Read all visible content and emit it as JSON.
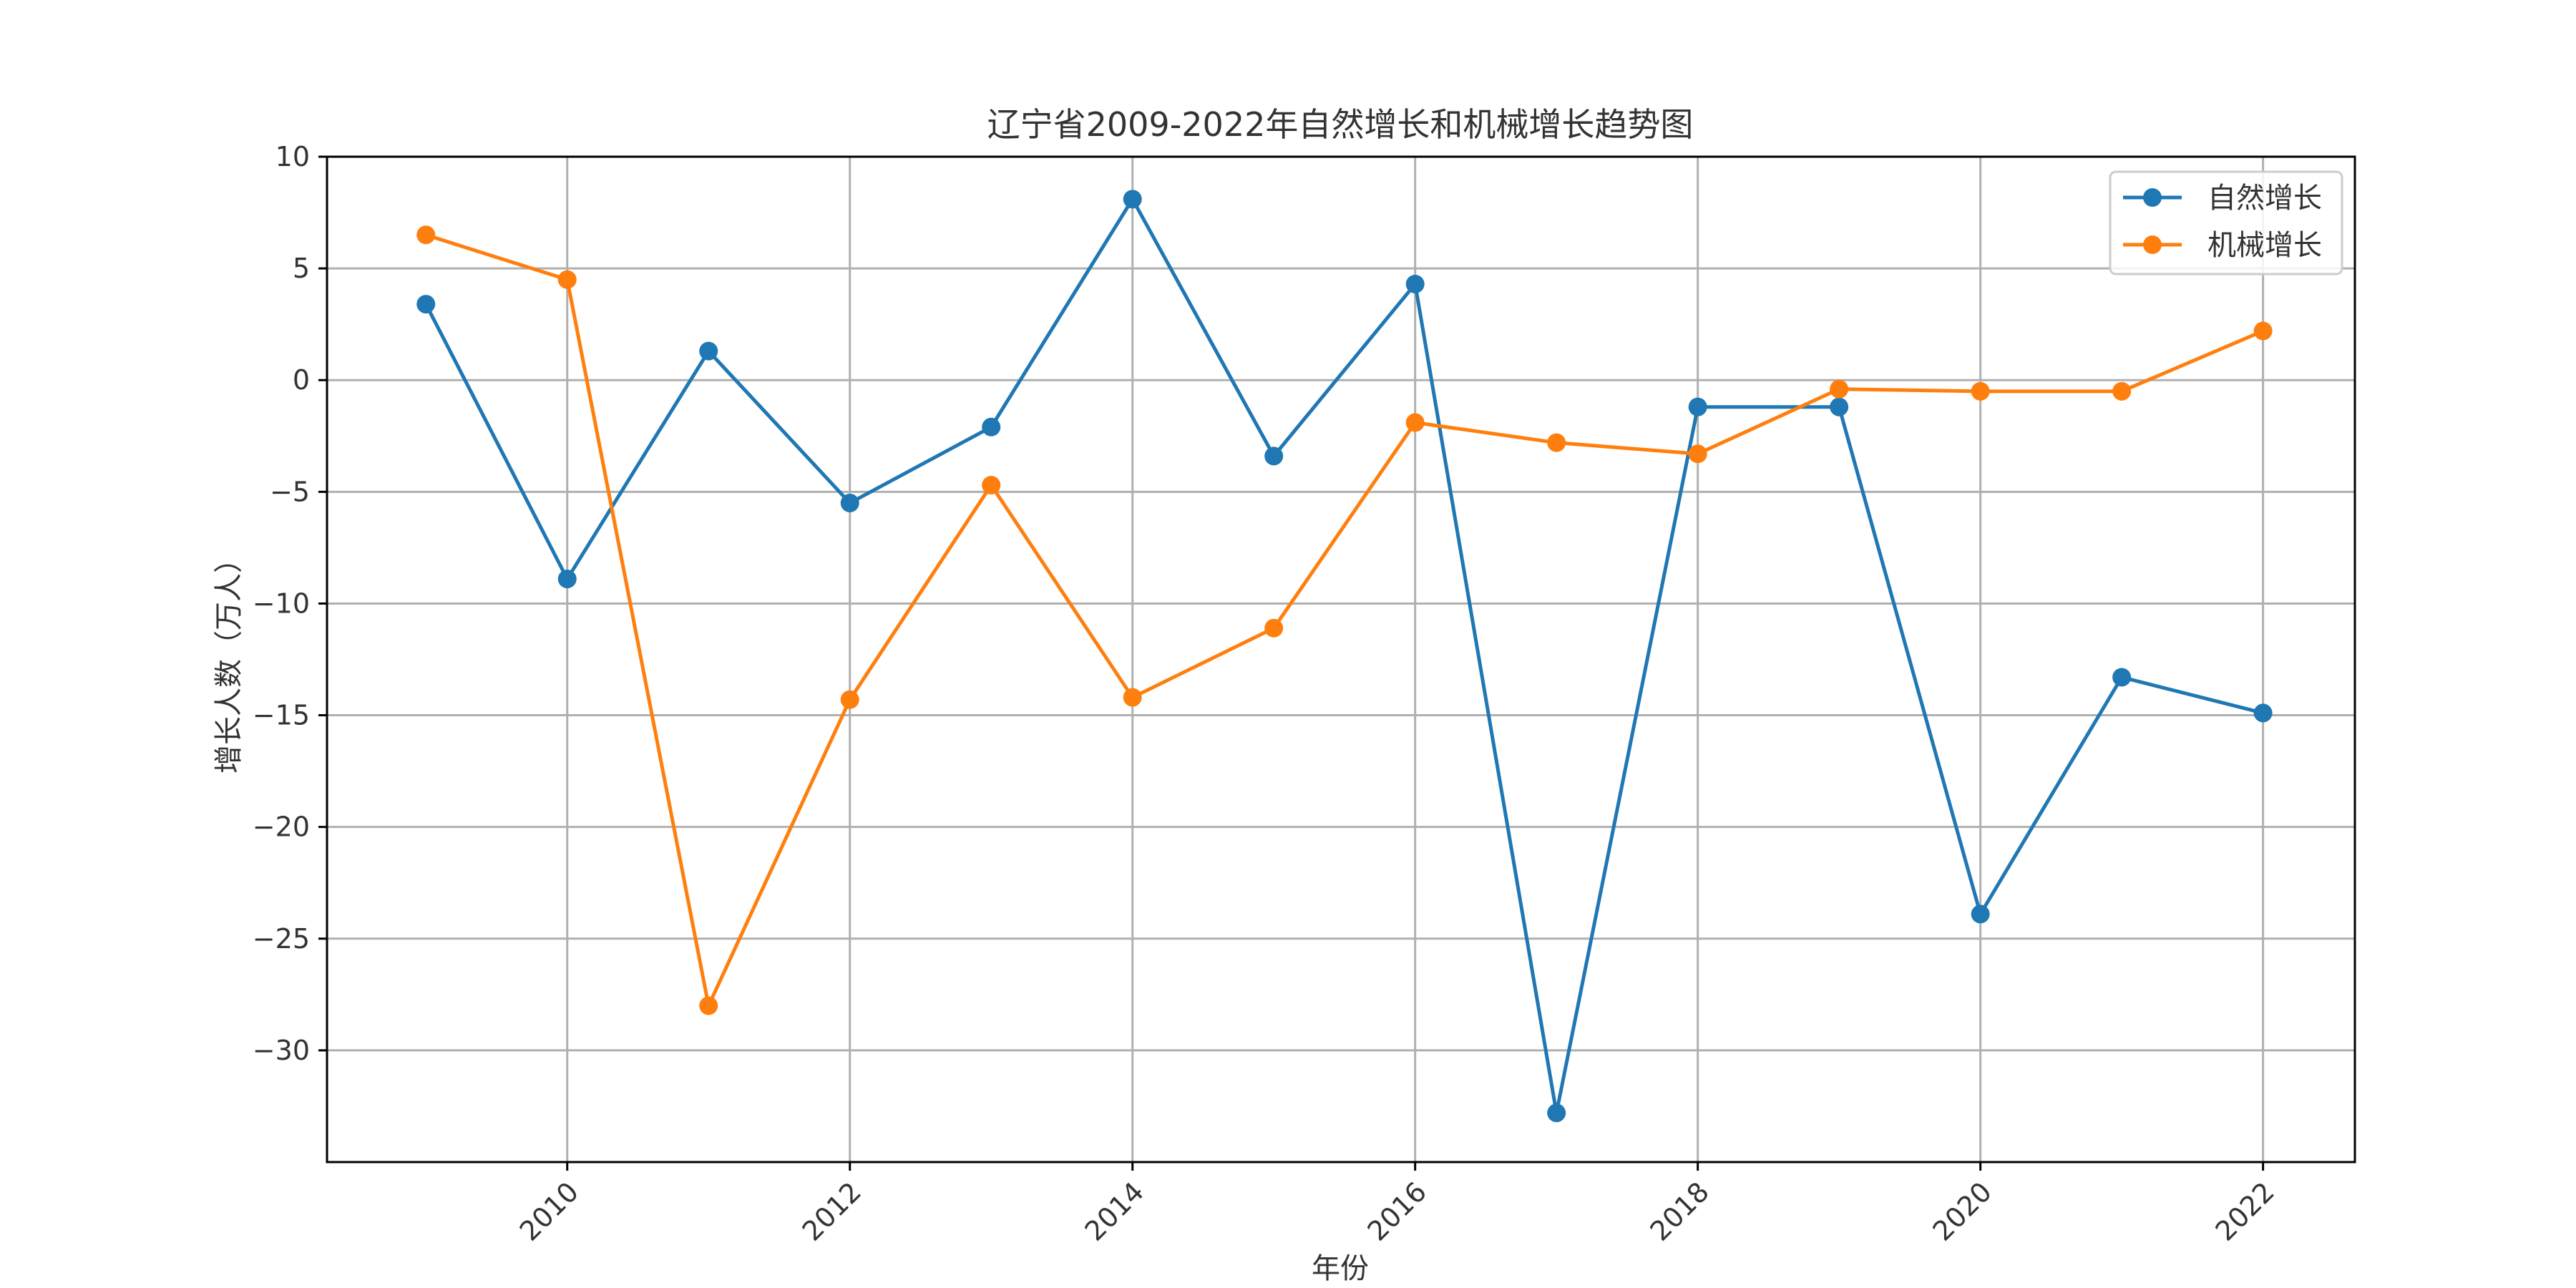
{
  "chart_data": {
    "type": "line",
    "title": "辽宁省2009-2022年自然增长和机械增长趋势图",
    "xlabel": "年份",
    "ylabel": "增长人数（万人）",
    "x": [
      2009,
      2010,
      2011,
      2012,
      2013,
      2014,
      2015,
      2016,
      2017,
      2018,
      2019,
      2020,
      2021,
      2022
    ],
    "x_ticks": [
      2010,
      2012,
      2014,
      2016,
      2018,
      2020,
      2022
    ],
    "y_ticks": [
      10,
      5,
      0,
      -5,
      -10,
      -15,
      -20,
      -25,
      -30
    ],
    "xlim": [
      2008.3,
      2022.65
    ],
    "ylim": [
      -35,
      10
    ],
    "grid": true,
    "legend_position": "top-right",
    "series": [
      {
        "name": "自然增长",
        "color": "#1f77b4",
        "values": [
          3.4,
          -8.9,
          1.3,
          -5.5,
          -2.1,
          8.1,
          -3.4,
          4.3,
          -32.8,
          -1.2,
          -1.2,
          -23.9,
          -13.3,
          -14.9
        ]
      },
      {
        "name": "机械增长",
        "color": "#ff7f0e",
        "values": [
          6.5,
          4.5,
          -28.0,
          -14.3,
          -4.7,
          -14.2,
          -11.1,
          -1.9,
          -2.8,
          -3.3,
          -0.4,
          -0.5,
          -0.5,
          2.2
        ]
      }
    ]
  }
}
